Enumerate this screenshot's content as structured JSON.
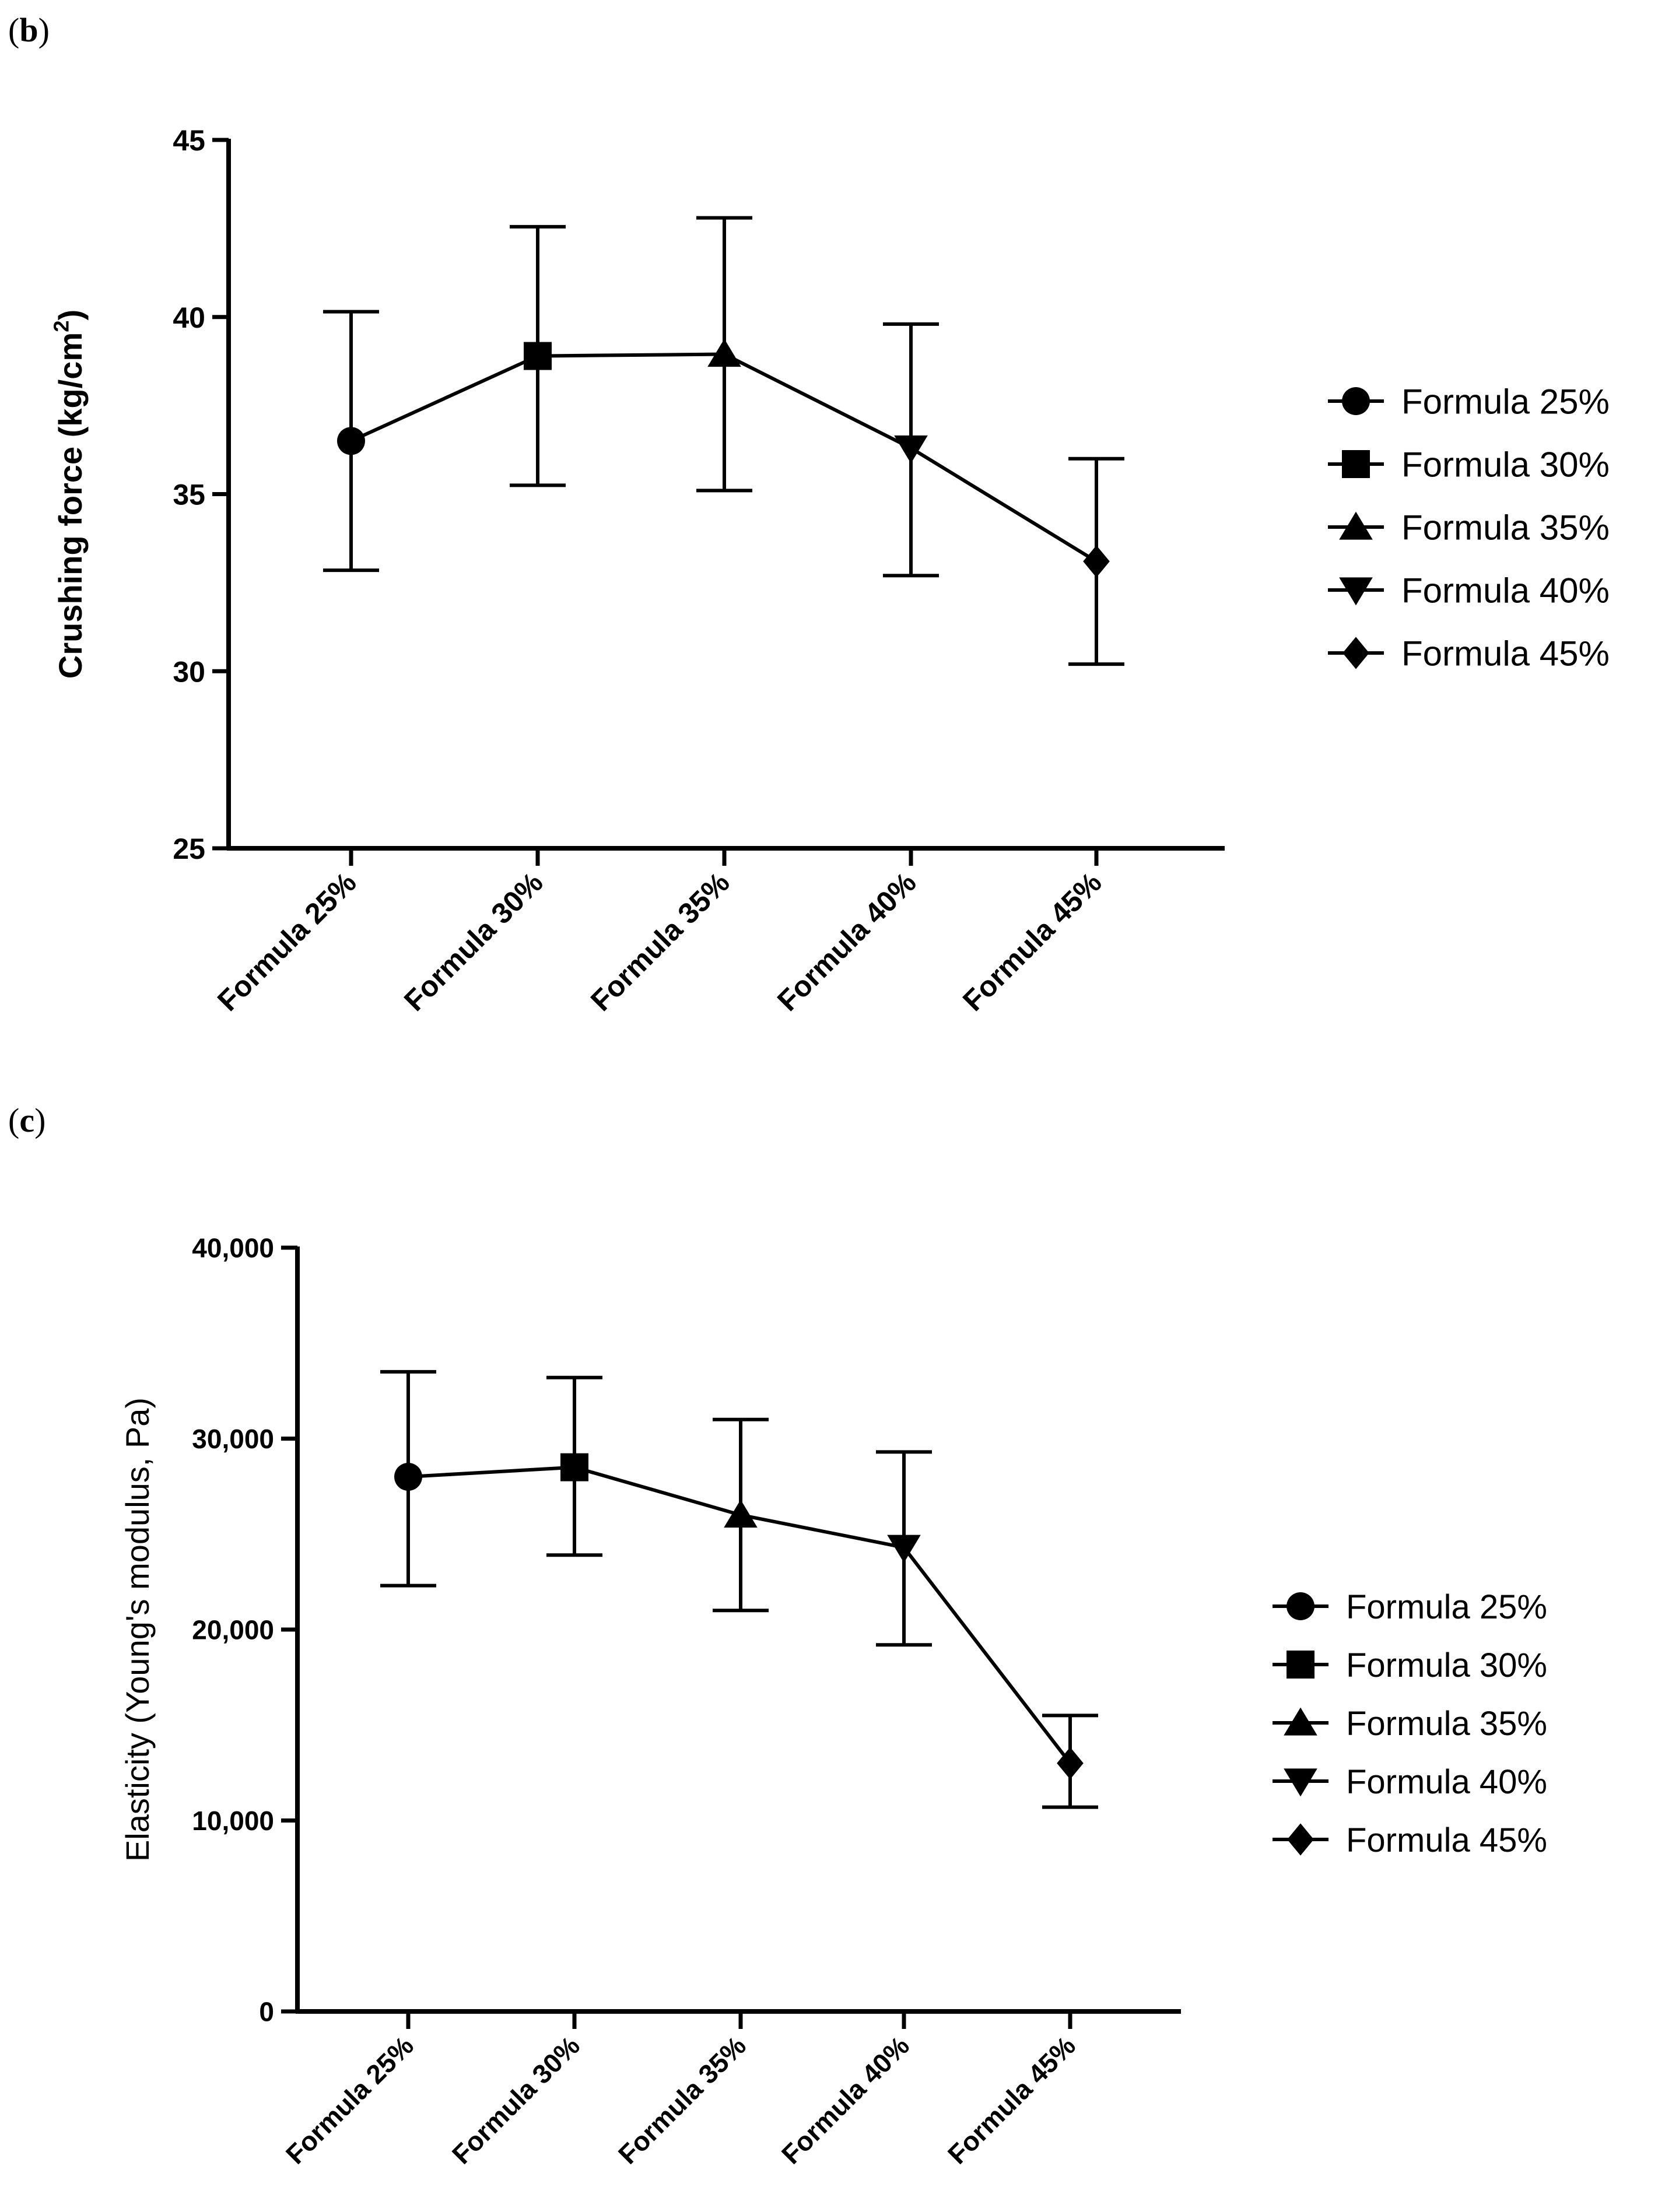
{
  "panels": [
    {
      "label_open": "(",
      "label_letter": "b",
      "label_close": ")"
    },
    {
      "label_open": "(",
      "label_letter": "c",
      "label_close": ")"
    }
  ],
  "chart_data": [
    {
      "type": "line",
      "categories": [
        "Formula 25%",
        "Formula 30%",
        "Formula 35%",
        "Formula 40%",
        "Formula 45%"
      ],
      "ylabel": "Crushing force (kg/cm",
      "ylabel_sup": "2",
      "ylabel_close": ")",
      "ylim": [
        25,
        45
      ],
      "yticks": [
        25,
        30,
        35,
        40,
        45
      ],
      "ytick_labels": [
        "25",
        "30",
        "35",
        "40",
        "45"
      ],
      "series": [
        {
          "values": [
            36.5,
            38.9,
            38.95,
            36.3,
            33.1
          ],
          "err_upper": [
            40.15,
            42.55,
            42.8,
            39.8,
            36.0
          ],
          "err_lower": [
            32.85,
            35.25,
            35.1,
            32.7,
            30.2
          ]
        }
      ],
      "markers": [
        "circle",
        "square",
        "triangle-up",
        "triangle-down",
        "diamond"
      ],
      "legend": {
        "position": "right",
        "entries": [
          "Formula 25%",
          "Formula 30%",
          "Formula 35%",
          "Formula 40%",
          "Formula 45%"
        ]
      }
    },
    {
      "type": "line",
      "categories": [
        "Formula 25%",
        "Formula 30%",
        "Formula 35%",
        "Formula 40%",
        "Formula 45%"
      ],
      "ylabel": "Elasticity (Young's modulus, Pa)",
      "ylim": [
        0,
        40000
      ],
      "yticks": [
        0,
        10000,
        20000,
        30000,
        40000
      ],
      "ytick_labels": [
        "0",
        "10,000",
        "20,000",
        "30,000",
        "40,000"
      ],
      "series": [
        {
          "values": [
            28000,
            28500,
            26000,
            24300,
            13000
          ],
          "err_upper": [
            33500,
            33200,
            31000,
            29300,
            15500
          ],
          "err_lower": [
            22300,
            23900,
            21000,
            19200,
            10700
          ]
        }
      ],
      "markers": [
        "circle",
        "square",
        "triangle-up",
        "triangle-down",
        "diamond"
      ],
      "legend": {
        "position": "right",
        "entries": [
          "Formula 25%",
          "Formula 30%",
          "Formula 35%",
          "Formula 40%",
          "Formula 45%"
        ]
      }
    }
  ]
}
